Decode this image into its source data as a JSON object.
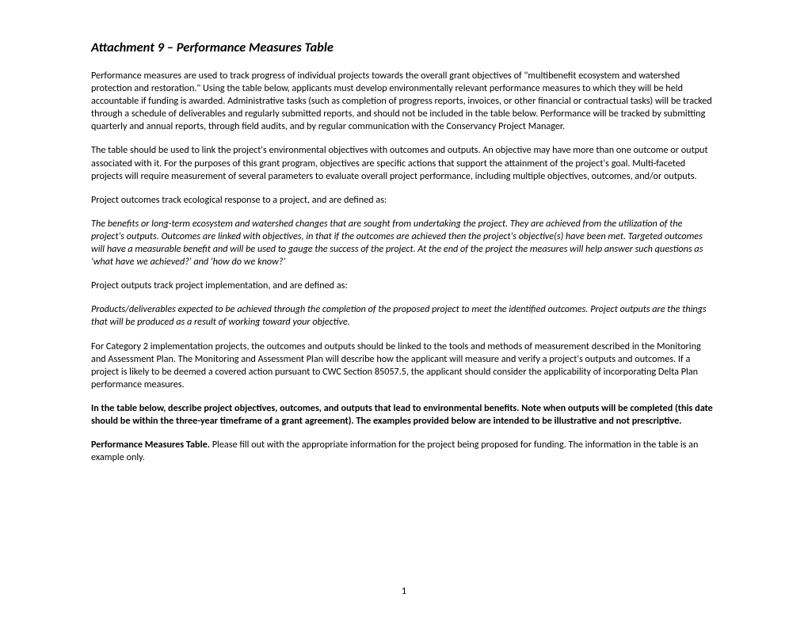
{
  "title": "Attachment 9 – Performance Measures Table",
  "p1": "Performance measures are used to track progress of individual projects towards the overall grant objectives of \"multibenefit ecosystem and watershed protection and restoration.\" Using the table below, applicants must develop environmentally relevant performance measures to which they will be held accountable if funding is awarded. Administrative tasks (such as completion of progress reports, invoices, or other financial or contractual tasks) will be tracked through a schedule of deliverables and regularly submitted reports, and should not be included in the table below. Performance will be tracked by submitting quarterly and annual reports, through field audits, and by regular communication with the Conservancy Project Manager.",
  "p2": "The table should be used to link the project's environmental objectives with outcomes and outputs. An objective may have more than one outcome or output associated with it. For the purposes of this grant program, objectives are specific actions that support the attainment of the project's goal. Multi-faceted projects will require measurement of several parameters to evaluate overall project performance, including multiple objectives, outcomes, and/or outputs.",
  "p3": "Project outcomes track ecological response to a project, and are defined as:",
  "p4": "The benefits or long-term ecosystem and watershed changes that are sought from undertaking the project. They are achieved from the utilization of the project's outputs. Outcomes are linked with objectives, in that if the outcomes are achieved then the project's objective(s) have been met. Targeted outcomes will have a measurable benefit and will be used to gauge the success of the project. At the end of the project the measures will help answer such questions as 'what have we achieved?' and 'how do we know?'",
  "p5": "Project outputs track project implementation, and are defined as:",
  "p6": "Products/deliverables expected to be achieved through the completion of the proposed project to meet the identified outcomes. Project outputs are the things that will be produced as a result of working toward your objective.",
  "p7": "For Category 2 implementation projects, the outcomes and outputs should be linked to the tools and methods of measurement described in the Monitoring and Assessment Plan.  The Monitoring and Assessment Plan will describe how the applicant will measure and verify a project's outputs and outcomes. If a project is likely to be deemed a covered action pursuant to CWC Section 85057.5, the applicant should consider the applicability of incorporating Delta Plan performance measures.",
  "p8": "In the table below, describe project objectives, outcomes, and outputs that lead to environmental benefits. Note when outputs will be completed (this date should be within the three-year timeframe of a grant agreement). The examples provided below are intended to be illustrative and not prescriptive.",
  "p9a": "Performance Measures Table.",
  "p9b": " Please fill out with the appropriate information for the project being proposed for funding. The information in the table is an example only.",
  "pageNumber": "1"
}
